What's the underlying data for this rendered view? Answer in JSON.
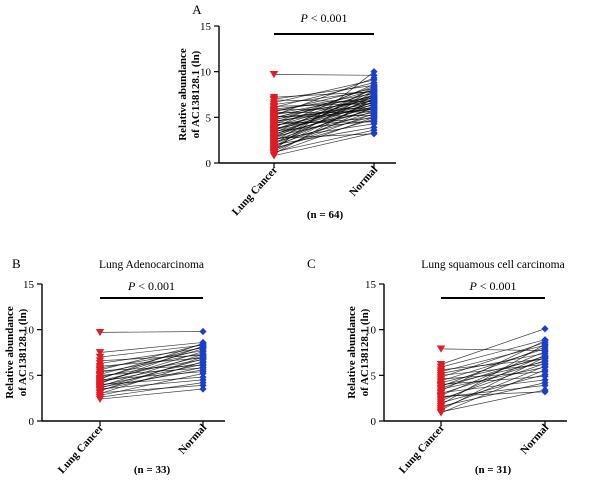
{
  "colors": {
    "lung_cancer": "#e01b24",
    "normal": "#1a3fc8",
    "lines": "#000000"
  },
  "marker_shapes": {
    "lung_cancer": "triangle-down",
    "normal": "diamond"
  },
  "chart_data": [
    {
      "panel": "A",
      "type": "scatter",
      "title": "",
      "categories": [
        "Lung Cancer",
        "Normal"
      ],
      "ylabel_line1": "Relative  abundance",
      "ylabel_line2": "of AC138128.1 (ln)",
      "yticks": [
        "0",
        "5",
        "10",
        "15"
      ],
      "ylim": [
        0,
        15
      ],
      "significance": "P < 0.001",
      "n_label": "(n = 64)",
      "series": [
        {
          "name": "Lung Cancer",
          "values": [
            9.7,
            7.2,
            7.0,
            6.9,
            6.6,
            6.4,
            6.2,
            6.1,
            5.9,
            5.8,
            5.7,
            5.6,
            5.5,
            5.4,
            5.3,
            5.2,
            5.1,
            5.0,
            4.9,
            4.8,
            4.7,
            4.6,
            4.5,
            4.4,
            4.3,
            4.2,
            4.1,
            4.0,
            3.9,
            3.8,
            3.7,
            3.6,
            3.5,
            3.4,
            3.3,
            3.2,
            3.1,
            3.0,
            2.9,
            2.8,
            2.7,
            2.6,
            2.5,
            2.4,
            2.3,
            2.2,
            2.1,
            2.0,
            1.9,
            1.8,
            1.7,
            1.6,
            1.5,
            1.4,
            1.3,
            1.2,
            1.1,
            1.0,
            0.8,
            3.6,
            4.4,
            5.0,
            3.1,
            2.7
          ]
        },
        {
          "name": "Normal",
          "values": [
            9.6,
            7.8,
            8.5,
            6.7,
            9.1,
            7.9,
            6.5,
            8.8,
            7.1,
            6.0,
            7.6,
            8.2,
            5.6,
            7.3,
            6.8,
            9.3,
            5.2,
            7.0,
            8.0,
            6.3,
            7.7,
            5.9,
            6.6,
            8.4,
            7.4,
            4.9,
            6.1,
            7.2,
            8.6,
            5.5,
            6.9,
            7.5,
            4.6,
            6.4,
            8.1,
            5.8,
            7.0,
            6.2,
            5.3,
            7.9,
            6.7,
            4.3,
            6.0,
            8.3,
            5.1,
            7.3,
            6.5,
            3.9,
            5.7,
            7.8,
            6.8,
            4.8,
            5.4,
            10.0,
            6.2,
            3.6,
            5.0,
            7.1,
            3.3,
            6.6,
            4.5,
            5.9,
            7.4,
            3.2
          ]
        }
      ]
    },
    {
      "panel": "B",
      "type": "scatter",
      "title": "Lung Adenocarcinoma",
      "categories": [
        "Lung Cancer",
        "Normal"
      ],
      "ylabel_line1": "Relative  abundance",
      "ylabel_line2": "of AC138128.1 (ln)",
      "yticks": [
        "0",
        "5",
        "10",
        "15"
      ],
      "ylim": [
        0,
        15
      ],
      "significance": "P < 0.001",
      "n_label": "(n = 33)",
      "series": [
        {
          "name": "Lung Cancer",
          "values": [
            9.7,
            7.5,
            7.0,
            6.6,
            6.3,
            6.0,
            5.8,
            5.6,
            5.5,
            5.3,
            5.1,
            5.0,
            4.9,
            4.7,
            4.6,
            4.5,
            4.4,
            4.3,
            4.2,
            4.1,
            4.0,
            3.9,
            3.8,
            3.7,
            3.6,
            3.5,
            3.4,
            3.3,
            3.1,
            3.0,
            2.8,
            2.6,
            2.4
          ]
        },
        {
          "name": "Normal",
          "values": [
            9.8,
            8.6,
            8.3,
            7.2,
            8.0,
            6.9,
            7.7,
            8.4,
            6.1,
            7.4,
            8.1,
            5.8,
            6.7,
            7.9,
            8.5,
            5.4,
            7.1,
            6.4,
            7.6,
            8.2,
            4.8,
            6.2,
            7.3,
            5.6,
            6.8,
            4.5,
            5.9,
            7.0,
            3.9,
            6.5,
            5.2,
            4.2,
            3.5
          ]
        }
      ]
    },
    {
      "panel": "C",
      "type": "scatter",
      "title": "Lung squamous cell carcinoma",
      "categories": [
        "Lung Cancer",
        "Normal"
      ],
      "ylabel_line1": "Relative  abundance",
      "ylabel_line2": "of AC138128.1 (ln)",
      "yticks": [
        "0",
        "5",
        "10",
        "15"
      ],
      "ylim": [
        0,
        15
      ],
      "significance": "P < 0.001",
      "n_label": "(n = 31)",
      "series": [
        {
          "name": "Lung Cancer",
          "values": [
            7.9,
            6.2,
            5.9,
            5.6,
            5.4,
            5.2,
            5.0,
            4.8,
            4.6,
            4.4,
            4.2,
            4.0,
            3.8,
            3.6,
            3.5,
            3.3,
            3.1,
            3.0,
            2.8,
            2.6,
            2.4,
            2.2,
            2.0,
            1.8,
            1.6,
            1.4,
            1.2,
            1.0,
            0.9,
            3.9,
            2.7
          ]
        },
        {
          "name": "Normal",
          "values": [
            7.7,
            10.1,
            8.9,
            6.8,
            8.3,
            7.4,
            6.2,
            8.6,
            5.4,
            7.9,
            6.9,
            4.9,
            8.1,
            7.1,
            5.9,
            8.8,
            4.5,
            6.6,
            7.6,
            3.9,
            6.3,
            7.2,
            5.1,
            8.4,
            4.2,
            6.0,
            7.0,
            3.4,
            5.6,
            6.5,
            3.2
          ]
        }
      ]
    }
  ]
}
